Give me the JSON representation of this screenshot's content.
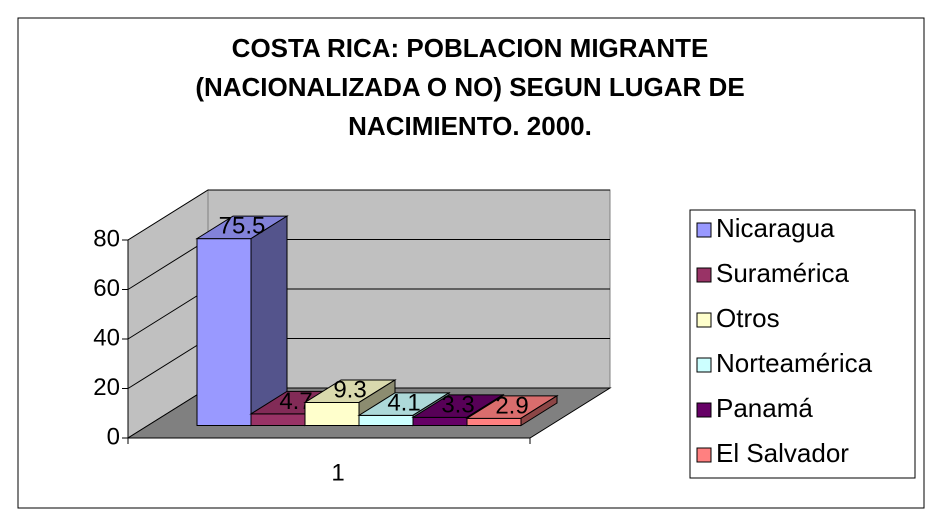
{
  "chart_data": {
    "type": "bar3d",
    "title": [
      "COSTA RICA: POBLACION MIGRANTE",
      "(NACIONALIZADA O NO) SEGUN LUGAR DE",
      "NACIMIENTO. 2000."
    ],
    "categories": [
      "1"
    ],
    "series": [
      {
        "name": "Nicaragua",
        "color": "#9999ff",
        "values": [
          75.5
        ]
      },
      {
        "name": "Suramérica",
        "color": "#993366",
        "values": [
          4.7
        ]
      },
      {
        "name": "Otros",
        "color": "#ffffcc",
        "values": [
          9.3
        ]
      },
      {
        "name": "Norteamérica",
        "color": "#ccffff",
        "values": [
          4.1
        ]
      },
      {
        "name": "Panamá",
        "color": "#660066",
        "values": [
          3.3
        ]
      },
      {
        "name": "El Salvador",
        "color": "#ff8080",
        "values": [
          2.9
        ]
      }
    ],
    "ylim": [
      0,
      80
    ],
    "yticks": [
      0,
      20,
      40,
      60,
      80
    ],
    "grid": true,
    "legend": "right"
  }
}
